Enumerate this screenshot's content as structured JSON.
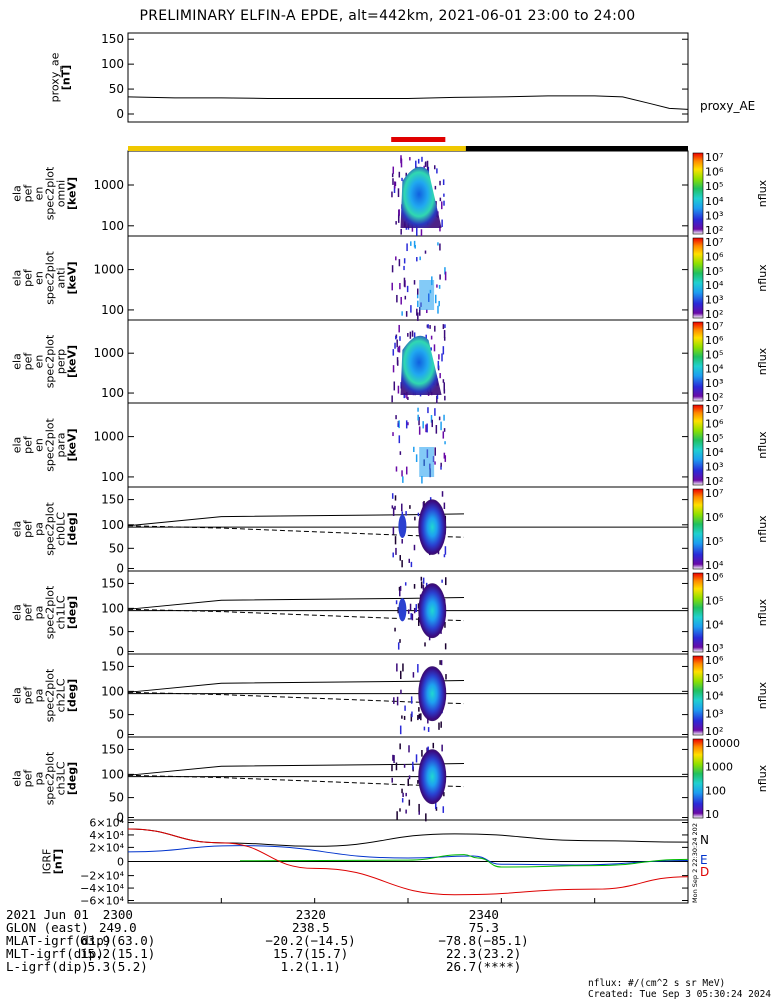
{
  "title": "PRELIMINARY ELFIN-A EPDE, alt=442km, 2021-06-01 23:00 to 24:00",
  "colors": {
    "state_bar_yellow": "#f0c800",
    "state_bar_black": "#000000",
    "state_bar_red": "#e00000",
    "bx": "#000000",
    "by": "#0033cc",
    "bz": "#00bb00",
    "bd": "#dd0000"
  },
  "state_bar": {
    "yellow_span_min": [
      0,
      36.2
    ],
    "black_span_min": [
      36.2,
      60
    ],
    "red_span_min": [
      28.2,
      34
    ]
  },
  "panels": [
    {
      "id": "proxy_ae",
      "label": [
        "proxy_ae",
        "[nT]"
      ],
      "ticks": [
        "150",
        "100",
        "50",
        "0"
      ],
      "right_label": "proxy_AE"
    },
    {
      "id": "spec_omni",
      "label": [
        "ela",
        "pef",
        "en",
        "spec2plot",
        "omni",
        "[keV]"
      ],
      "ticks": [
        "1000",
        "100"
      ],
      "colorbar_ticks": [
        "10⁷",
        "10⁶",
        "10⁵",
        "10⁴",
        "10³",
        "10²"
      ],
      "colorbar_label": "nflux"
    },
    {
      "id": "spec_anti",
      "label": [
        "ela",
        "pef",
        "en",
        "spec2plot",
        "anti",
        "[keV]"
      ],
      "ticks": [
        "1000",
        "100"
      ],
      "colorbar_ticks": [
        "10⁷",
        "10⁶",
        "10⁵",
        "10⁴",
        "10³",
        "10²"
      ],
      "colorbar_label": "nflux"
    },
    {
      "id": "spec_perp",
      "label": [
        "ela",
        "pef",
        "en",
        "spec2plot",
        "perp",
        "[keV]"
      ],
      "ticks": [
        "1000",
        "100"
      ],
      "colorbar_ticks": [
        "10⁷",
        "10⁶",
        "10⁵",
        "10⁴",
        "10³",
        "10²"
      ],
      "colorbar_label": "nflux"
    },
    {
      "id": "spec_para",
      "label": [
        "ela",
        "pef",
        "en",
        "spec2plot",
        "para",
        "[keV]"
      ],
      "ticks": [
        "1000",
        "100"
      ],
      "colorbar_ticks": [
        "10⁷",
        "10⁶",
        "10⁵",
        "10⁴",
        "10³",
        "10²"
      ],
      "colorbar_label": "nflux"
    },
    {
      "id": "pa_ch0",
      "label": [
        "ela",
        "pef",
        "pa",
        "spec2plot",
        "ch0LC",
        "[deg]"
      ],
      "ticks": [
        "150",
        "100",
        "50",
        "0"
      ],
      "colorbar_ticks": [
        "10⁷",
        "10⁶",
        "10⁵",
        "10⁴"
      ],
      "colorbar_label": "nflux"
    },
    {
      "id": "pa_ch1",
      "label": [
        "ela",
        "pef",
        "pa",
        "spec2plot",
        "ch1LC",
        "[deg]"
      ],
      "ticks": [
        "150",
        "100",
        "50",
        "0"
      ],
      "colorbar_ticks": [
        "10⁶",
        "10⁵",
        "10⁴",
        "10³"
      ],
      "colorbar_label": "nflux"
    },
    {
      "id": "pa_ch2",
      "label": [
        "ela",
        "pef",
        "pa",
        "spec2plot",
        "ch2LC",
        "[deg]"
      ],
      "ticks": [
        "150",
        "100",
        "50",
        "0"
      ],
      "colorbar_ticks": [
        "10⁶",
        "10⁵",
        "10⁴",
        "10³",
        "10²"
      ],
      "colorbar_label": "nflux"
    },
    {
      "id": "pa_ch3",
      "label": [
        "ela",
        "pef",
        "pa",
        "spec2plot",
        "ch3LC",
        "[deg]"
      ],
      "ticks": [
        "150",
        "100",
        "50",
        "0"
      ],
      "colorbar_ticks": [
        "10000",
        "1000",
        "100",
        "10"
      ],
      "colorbar_label": "nflux"
    },
    {
      "id": "igrf",
      "label": [
        "IGRF",
        "[nT]"
      ],
      "ticks": [
        "6×10⁴",
        "4×10⁴",
        "2×10⁴",
        "0",
        "−2×10⁴",
        "−4×10⁴",
        "−6×10⁴"
      ],
      "legend": [
        "N",
        "E",
        "E",
        "D"
      ]
    }
  ],
  "chart_data": {
    "type": "line",
    "x_unit": "minutes after 2021-06-01 23:00",
    "xlim": [
      0,
      60
    ],
    "proxy_ae": {
      "x": [
        0,
        5,
        10,
        15,
        20,
        25,
        30,
        35,
        40,
        45,
        50,
        53,
        56,
        58,
        60
      ],
      "y": [
        38,
        36,
        36,
        35,
        35,
        35,
        35,
        37,
        38,
        40,
        40,
        38,
        25,
        16,
        14
      ],
      "ylim": [
        -10,
        160
      ]
    },
    "pa_model_lines": {
      "x": [
        0,
        10,
        30,
        36
      ],
      "upper": [
        93,
        113,
        117,
        119
      ],
      "lower_dashed": [
        93,
        88,
        72,
        68
      ],
      "reference": 90
    },
    "igrf": {
      "ylim": [
        -60000,
        60000
      ],
      "series": [
        {
          "key": "N",
          "x": [
            0,
            10,
            20,
            35,
            50,
            60
          ],
          "values": [
            47000,
            27000,
            22000,
            40000,
            30000,
            28000
          ]
        },
        {
          "key": "E",
          "x": [
            0,
            12,
            30,
            37,
            40,
            48,
            60
          ],
          "values": [
            14000,
            23000,
            5000,
            8000,
            -4000,
            -5000,
            1500
          ]
        },
        {
          "key": "E",
          "x": [
            12,
            30,
            36,
            37.5,
            40,
            50,
            60
          ],
          "values": [
            1000,
            2000,
            10000,
            5000,
            -8000,
            -6000,
            3000
          ]
        },
        {
          "key": "D",
          "x": [
            0,
            10,
            20,
            35,
            50,
            60
          ],
          "values": [
            47000,
            27000,
            -10000,
            -48000,
            -40000,
            -22000
          ]
        }
      ]
    }
  },
  "footer": {
    "rows": [
      {
        "label": "2021 Jun 01",
        "c1": "2300",
        "c2": "2320",
        "c3": "2340"
      },
      {
        "label": "GLON (east)",
        "c1": "249.0",
        "c2": "238.5",
        "c3": "75.3"
      },
      {
        "label": "MLAT-igrf(dip)",
        "c1": "63.9(63.0)",
        "c2": "−20.2(−14.5)",
        "c3": "−78.8(−85.1)"
      },
      {
        "label": "MLT-igrf(dip)",
        "c1": "15.2(15.1)",
        "c2": "15.7(15.7)",
        "c3": "22.3(23.2)"
      },
      {
        "label": "L-igrf(dip)",
        "c1": "5.3(5.2)",
        "c2": "1.2(1.1)",
        "c3": "26.7(****)"
      }
    ],
    "units_note": "nflux: #/(cm^2 s sr MeV)",
    "created": "Created: Tue Sep  3 05:30:24 2024"
  },
  "stamp": "Mon Sep  2 22:30:24 2024"
}
